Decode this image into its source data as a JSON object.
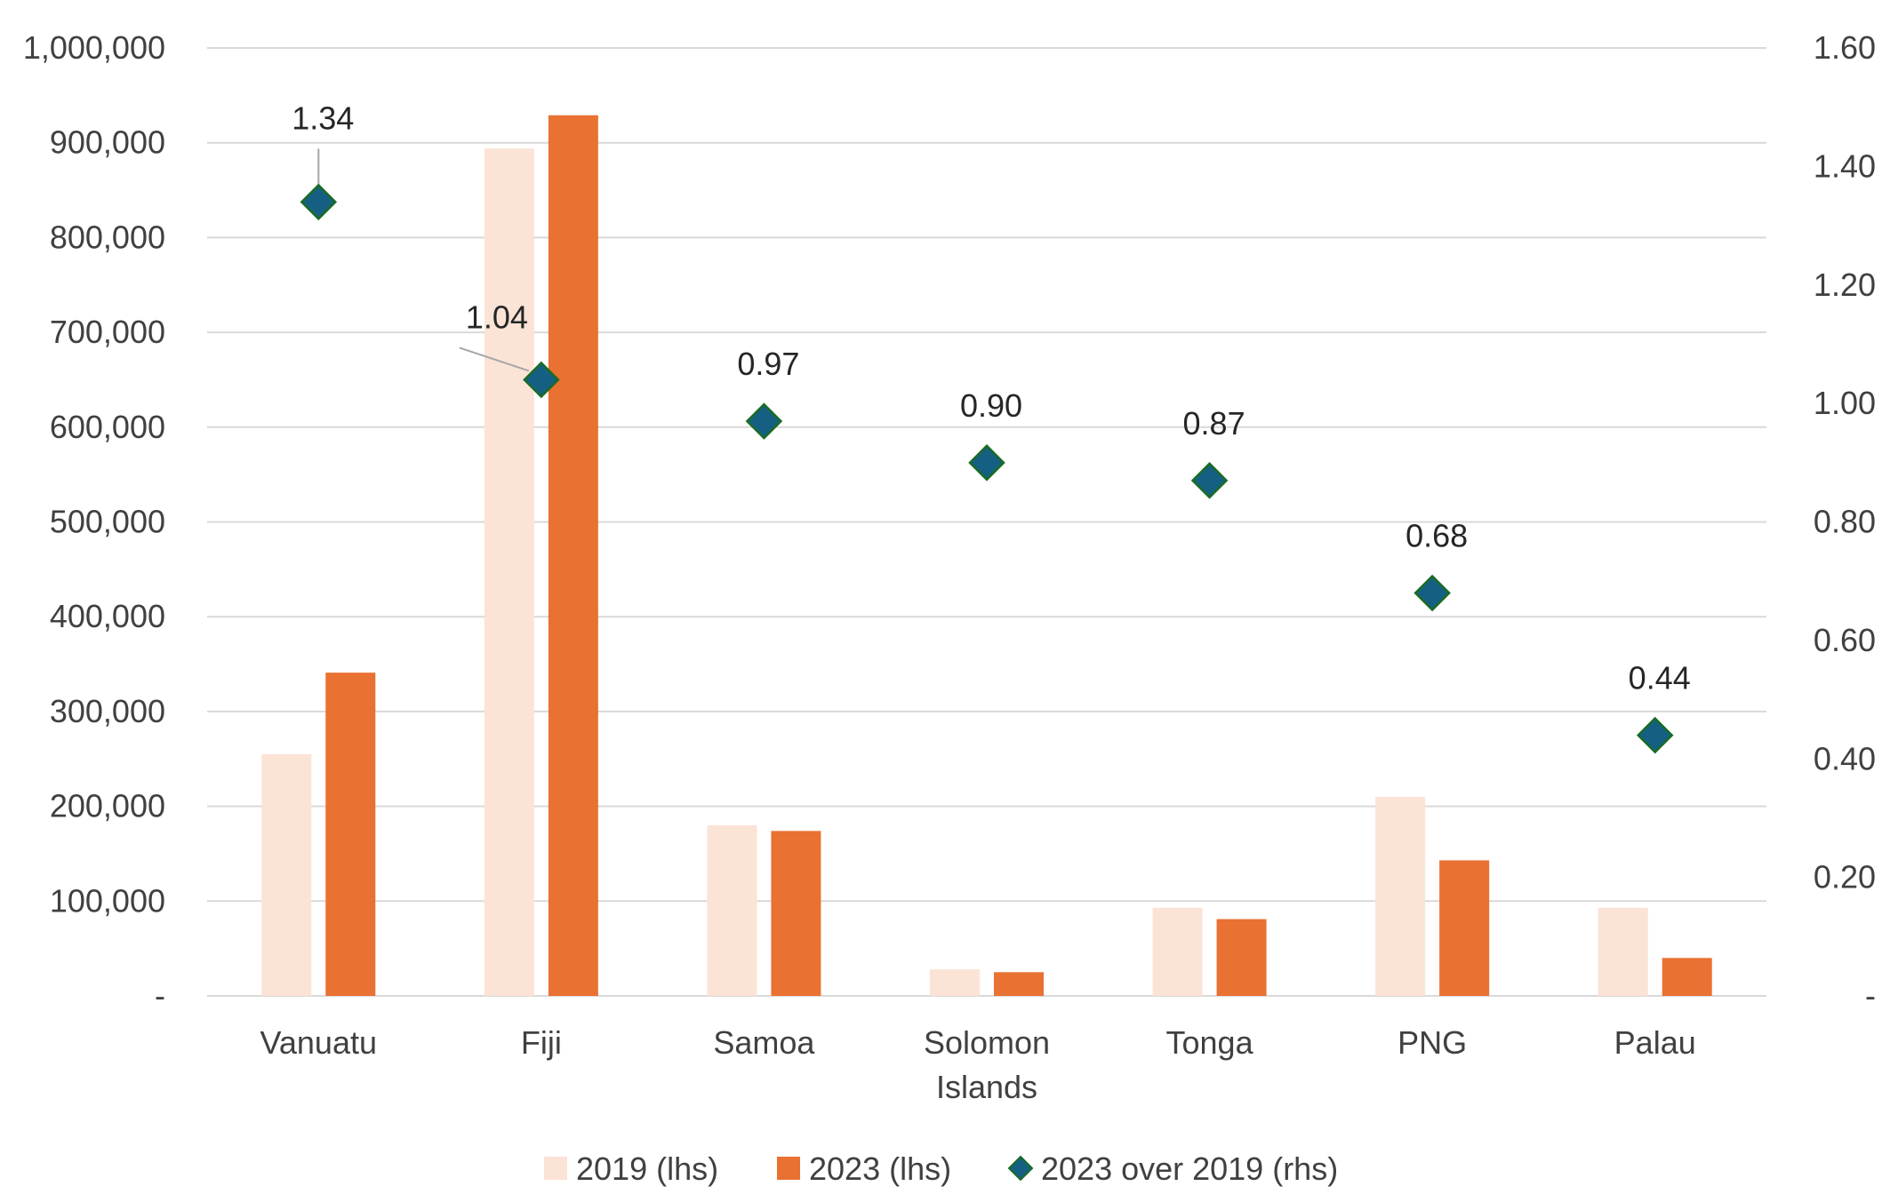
{
  "chart_data": {
    "type": "bar",
    "title": "",
    "categories": [
      [
        "Vanuatu"
      ],
      [
        "Fiji"
      ],
      [
        "Samoa"
      ],
      [
        "Solomon",
        "Islands"
      ],
      [
        "Tonga"
      ],
      [
        "PNG"
      ],
      [
        "Palau"
      ]
    ],
    "series": [
      {
        "name": "2019 (lhs)",
        "kind": "bar",
        "axis": "left",
        "color": "#FBE3D6",
        "values": [
          255000,
          894000,
          180000,
          28000,
          93000,
          210000,
          93000
        ]
      },
      {
        "name": "2023 (lhs)",
        "kind": "bar",
        "axis": "left",
        "color": "#E97132",
        "values": [
          341000,
          929000,
          174000,
          25000,
          81000,
          143000,
          40000
        ]
      },
      {
        "name": "2023 over 2019 (rhs)",
        "kind": "scatter",
        "axis": "right",
        "color": "#156082",
        "edge_color": "#196B24",
        "values": [
          1.34,
          1.04,
          0.97,
          0.9,
          0.87,
          0.68,
          0.44
        ],
        "data_labels": [
          "1.34",
          "1.04",
          "0.97",
          "0.90",
          "0.87",
          "0.68",
          "0.44"
        ]
      }
    ],
    "y_left": {
      "min": 0,
      "max": 1000000,
      "step": 100000,
      "tick_labels": [
        "-",
        "100,000",
        "200,000",
        "300,000",
        "400,000",
        "500,000",
        "600,000",
        "700,000",
        "800,000",
        "900,000",
        "1,000,000"
      ]
    },
    "y_right": {
      "min": 0,
      "max": 1.6,
      "step": 0.2,
      "tick_labels": [
        "-",
        "0.20",
        "0.40",
        "0.60",
        "0.80",
        "1.00",
        "1.20",
        "1.40",
        "1.60"
      ]
    },
    "grid": true,
    "gridline_color": "#D9D9D9",
    "legend_position": "bottom"
  }
}
